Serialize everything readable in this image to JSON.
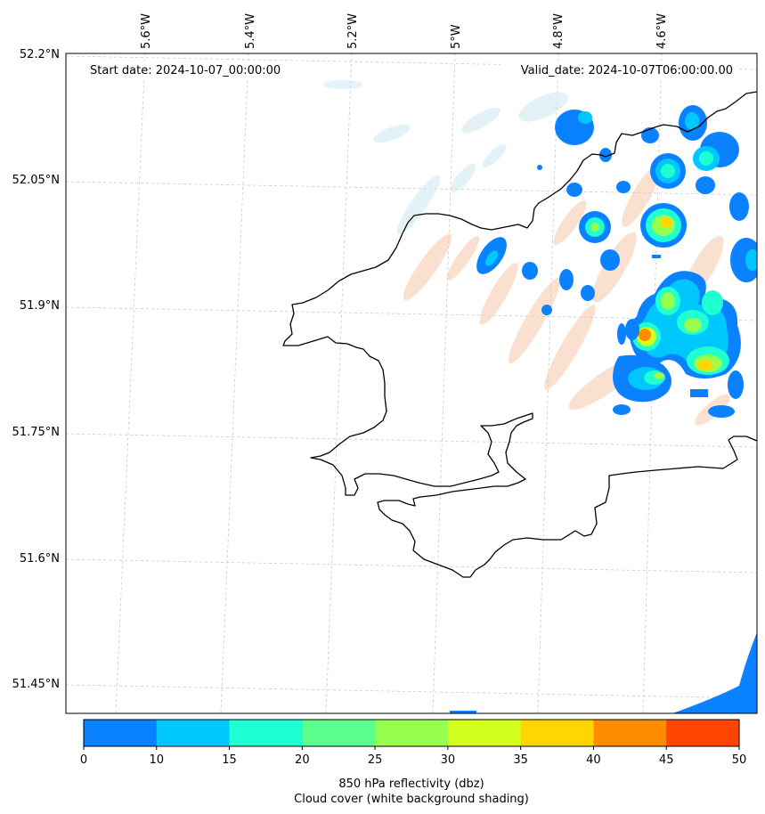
{
  "map": {
    "start_date": "Start date: 2024-10-07_00:00:00",
    "valid_date": "Valid_date: 2024-10-07T06:00:00.00",
    "lon_labels": [
      "5.6°W",
      "5.4°W",
      "5.2°W",
      "5°W",
      "4.8°W",
      "4.6°W"
    ],
    "lat_labels": [
      "52.2°N",
      "52.05°N",
      "51.9°N",
      "51.75°N",
      "51.6°N",
      "51.45°N"
    ]
  },
  "colorbar": {
    "ticks": [
      "0",
      "10",
      "15",
      "20",
      "25",
      "30",
      "35",
      "40",
      "45",
      "50"
    ],
    "colors": [
      "#0a82ff",
      "#00c8ff",
      "#1effd2",
      "#5aff8c",
      "#96ff50",
      "#d2ff1e",
      "#ffd700",
      "#ff8c00",
      "#ff4500"
    ],
    "label_line1": "850 hPa reflectivity (dbz)",
    "label_line2": "Cloud cover (white background shading)"
  },
  "style": {
    "coastline": "#000000",
    "gridline": "#c8c8c8",
    "cloud_blue": "#cde9f2",
    "cloud_peach": "#f7c8a8"
  }
}
